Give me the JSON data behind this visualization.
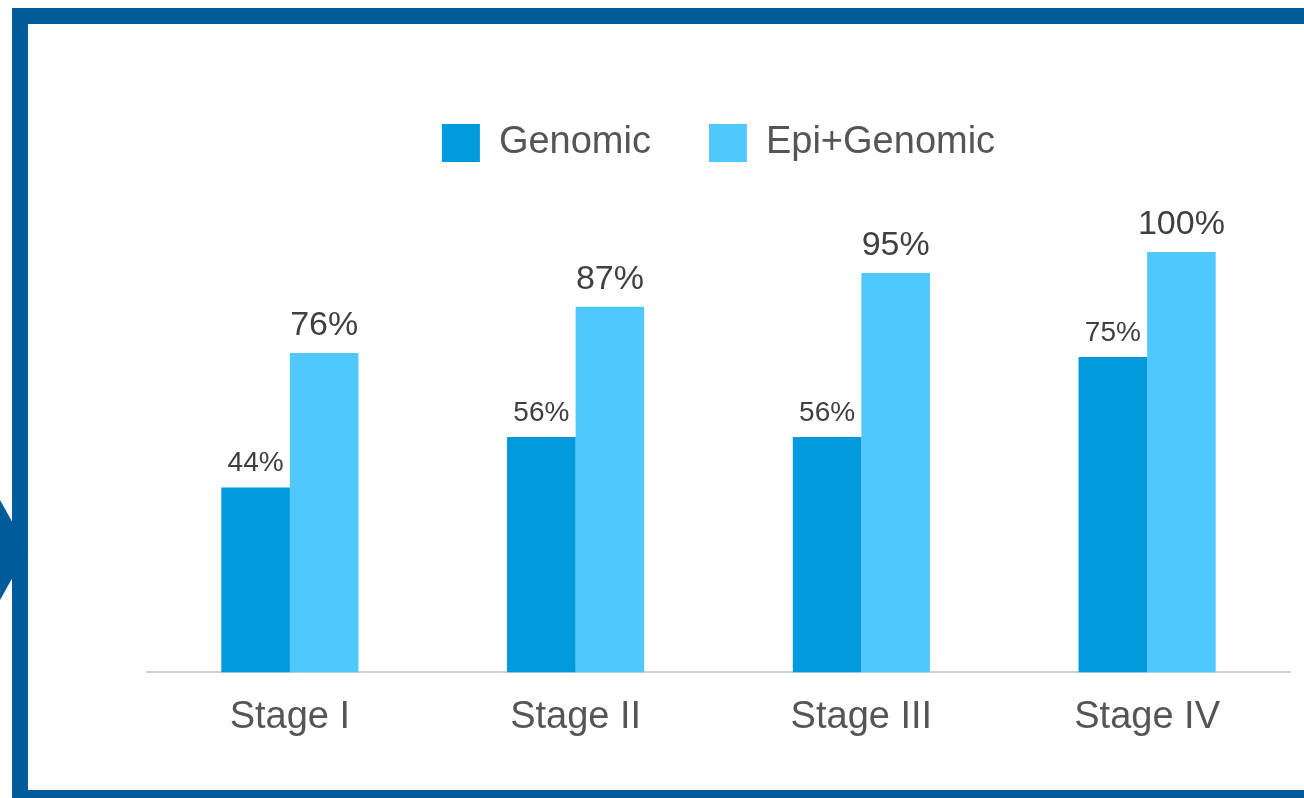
{
  "chart_data": {
    "type": "bar",
    "categories": [
      "Stage I",
      "Stage II",
      "Stage III",
      "Stage IV"
    ],
    "series": [
      {
        "name": "Genomic",
        "color": "#0099dc",
        "values": [
          44,
          56,
          56,
          75
        ],
        "value_labels": [
          "44%",
          "56%",
          "56%",
          "75%"
        ]
      },
      {
        "name": "Epi+Genomic",
        "color": "#50c8ff",
        "values": [
          76,
          87,
          95,
          100
        ],
        "value_labels": [
          "76%",
          "87%",
          "95%",
          "100%"
        ]
      }
    ],
    "legend": "top",
    "grid": false,
    "tick_labels": "x"
  }
}
